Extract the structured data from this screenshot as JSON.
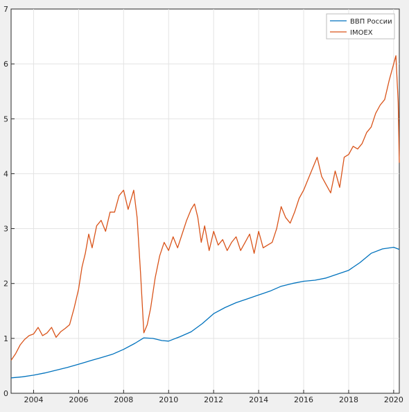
{
  "chart_data": {
    "type": "line",
    "title": "",
    "xlabel": "",
    "ylabel": "",
    "xlim": [
      2003.0,
      2020.25
    ],
    "ylim": [
      0,
      7
    ],
    "grid": true,
    "legend": "top-right",
    "xticks": [
      2004,
      2006,
      2008,
      2010,
      2012,
      2014,
      2016,
      2018,
      2020
    ],
    "yticks": [
      0,
      1,
      2,
      3,
      4,
      5,
      6,
      7
    ],
    "series": [
      {
        "name": "ВВП России",
        "color": "#0072bd",
        "x": [
          2003.0,
          2003.5,
          2004.0,
          2004.5,
          2005.0,
          2005.5,
          2006.0,
          2006.5,
          2007.0,
          2007.5,
          2008.0,
          2008.5,
          2008.9,
          2009.3,
          2009.7,
          2010.0,
          2010.5,
          2011.0,
          2011.5,
          2012.0,
          2012.5,
          2013.0,
          2013.5,
          2014.0,
          2014.5,
          2015.0,
          2015.5,
          2016.0,
          2016.5,
          2017.0,
          2017.5,
          2018.0,
          2018.5,
          2019.0,
          2019.5,
          2020.0,
          2020.25
        ],
        "values": [
          0.28,
          0.3,
          0.33,
          0.37,
          0.42,
          0.47,
          0.53,
          0.59,
          0.65,
          0.71,
          0.8,
          0.91,
          1.01,
          1.0,
          0.96,
          0.95,
          1.03,
          1.12,
          1.27,
          1.45,
          1.56,
          1.65,
          1.72,
          1.79,
          1.86,
          1.95,
          2.0,
          2.04,
          2.06,
          2.1,
          2.17,
          2.24,
          2.38,
          2.55,
          2.63,
          2.66,
          2.62
        ]
      },
      {
        "name": "IMOEX",
        "color": "#d95319",
        "x": [
          2003.0,
          2003.2,
          2003.4,
          2003.6,
          2003.8,
          2004.0,
          2004.2,
          2004.4,
          2004.6,
          2004.8,
          2005.0,
          2005.2,
          2005.4,
          2005.6,
          2005.8,
          2006.0,
          2006.15,
          2006.3,
          2006.45,
          2006.6,
          2006.8,
          2007.0,
          2007.2,
          2007.4,
          2007.6,
          2007.8,
          2008.0,
          2008.2,
          2008.45,
          2008.6,
          2008.75,
          2008.9,
          2009.05,
          2009.2,
          2009.4,
          2009.6,
          2009.8,
          2010.0,
          2010.2,
          2010.4,
          2010.6,
          2010.8,
          2011.0,
          2011.15,
          2011.3,
          2011.45,
          2011.6,
          2011.8,
          2012.0,
          2012.2,
          2012.4,
          2012.6,
          2012.8,
          2013.0,
          2013.2,
          2013.4,
          2013.6,
          2013.8,
          2014.0,
          2014.2,
          2014.4,
          2014.6,
          2014.8,
          2015.0,
          2015.2,
          2015.4,
          2015.6,
          2015.8,
          2016.0,
          2016.2,
          2016.4,
          2016.6,
          2016.8,
          2017.0,
          2017.2,
          2017.4,
          2017.6,
          2017.8,
          2018.0,
          2018.2,
          2018.4,
          2018.6,
          2018.8,
          2019.0,
          2019.2,
          2019.4,
          2019.6,
          2019.8,
          2020.0,
          2020.1,
          2020.2,
          2020.25
        ],
        "values": [
          0.6,
          0.72,
          0.88,
          0.98,
          1.05,
          1.08,
          1.2,
          1.05,
          1.1,
          1.2,
          1.02,
          1.12,
          1.18,
          1.25,
          1.55,
          1.9,
          2.3,
          2.55,
          2.9,
          2.65,
          3.05,
          3.15,
          2.95,
          3.3,
          3.3,
          3.6,
          3.7,
          3.35,
          3.7,
          3.2,
          2.2,
          1.1,
          1.25,
          1.55,
          2.1,
          2.5,
          2.75,
          2.6,
          2.85,
          2.65,
          2.9,
          3.15,
          3.35,
          3.45,
          3.2,
          2.75,
          3.05,
          2.6,
          2.95,
          2.7,
          2.8,
          2.6,
          2.75,
          2.85,
          2.6,
          2.75,
          2.9,
          2.55,
          2.95,
          2.65,
          2.7,
          2.75,
          3.0,
          3.4,
          3.2,
          3.1,
          3.3,
          3.55,
          3.7,
          3.9,
          4.1,
          4.3,
          3.95,
          3.8,
          3.65,
          4.05,
          3.75,
          4.3,
          4.35,
          4.5,
          4.45,
          4.55,
          4.75,
          4.85,
          5.1,
          5.25,
          5.35,
          5.7,
          6.0,
          6.15,
          5.3,
          4.2
        ]
      }
    ]
  }
}
